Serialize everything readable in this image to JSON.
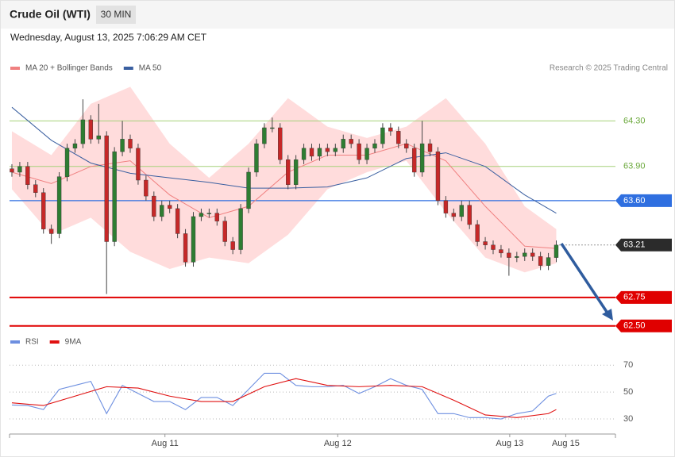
{
  "chart_data": [
    {
      "type": "candlestick",
      "title": "Crude Oil (WTI)",
      "timeframe": "30 MIN",
      "subtitle": "Wednesday, August 13, 2025 7:06:29 AM CET",
      "credit": "Research © 2025 Trading Central",
      "up_color": "#2e7d32",
      "down_color": "#c62828",
      "open": [
        63.88,
        63.85,
        63.9,
        63.74,
        63.67,
        63.35,
        63.31,
        63.81,
        64.06,
        64.1,
        64.31,
        64.14,
        64.17,
        63.24,
        64.03,
        64.14,
        64.06,
        63.78,
        63.64,
        63.46,
        63.56,
        63.53,
        63.31,
        63.06,
        63.46,
        63.49,
        63.49,
        63.42,
        63.24,
        63.17,
        63.53,
        63.85,
        64.1,
        64.24,
        64.24,
        63.96,
        63.74,
        63.96,
        64.06,
        63.99,
        64.06,
        64.03,
        64.06,
        64.14,
        64.1,
        63.96,
        64.06,
        64.1,
        64.24,
        64.21,
        64.1,
        64.06,
        63.85,
        64.1,
        64.03,
        63.6,
        63.49,
        63.46,
        63.56,
        63.39,
        63.24,
        63.21,
        63.17,
        63.14,
        63.1,
        63.11,
        63.14,
        63.11,
        63.03,
        63.1
      ],
      "high": [
        63.92,
        63.94,
        63.94,
        63.78,
        63.71,
        63.39,
        63.85,
        64.1,
        64.14,
        64.49,
        64.35,
        64.45,
        64.21,
        64.07,
        64.3,
        64.18,
        64.1,
        63.82,
        63.68,
        63.6,
        63.6,
        63.57,
        63.35,
        63.5,
        63.53,
        63.53,
        63.53,
        63.46,
        63.28,
        63.57,
        63.89,
        64.14,
        64.28,
        64.33,
        64.28,
        64.0,
        64.0,
        64.1,
        64.1,
        64.1,
        64.1,
        64.1,
        64.18,
        64.18,
        64.14,
        64.1,
        64.14,
        64.28,
        64.28,
        64.25,
        64.14,
        64.1,
        64.3,
        64.14,
        64.07,
        63.64,
        63.53,
        63.6,
        63.6,
        63.43,
        63.28,
        63.25,
        63.21,
        63.18,
        63.15,
        63.18,
        63.18,
        63.15,
        63.14,
        63.25
      ],
      "low": [
        63.81,
        63.81,
        63.7,
        63.63,
        63.31,
        63.22,
        63.27,
        63.77,
        64.02,
        64.06,
        64.1,
        64.1,
        62.78,
        63.2,
        63.99,
        64.02,
        63.74,
        63.6,
        63.42,
        63.42,
        63.49,
        63.27,
        63.02,
        63.02,
        63.42,
        63.45,
        63.38,
        63.2,
        63.13,
        63.13,
        63.49,
        63.81,
        64.06,
        64.2,
        63.92,
        63.7,
        63.7,
        63.92,
        63.95,
        63.95,
        63.99,
        63.99,
        64.02,
        64.06,
        63.92,
        63.92,
        64.02,
        64.06,
        64.17,
        64.06,
        64.02,
        63.81,
        63.81,
        63.99,
        63.56,
        63.45,
        63.42,
        63.42,
        63.35,
        63.2,
        63.17,
        63.13,
        63.1,
        62.94,
        63.06,
        63.07,
        63.07,
        62.99,
        62.99,
        63.06
      ],
      "close": [
        63.85,
        63.9,
        63.74,
        63.67,
        63.35,
        63.31,
        63.81,
        64.06,
        64.1,
        64.31,
        64.14,
        64.17,
        63.24,
        64.03,
        64.14,
        64.06,
        63.78,
        63.64,
        63.46,
        63.56,
        63.53,
        63.31,
        63.06,
        63.46,
        63.49,
        63.49,
        63.42,
        63.24,
        63.17,
        63.53,
        63.85,
        64.1,
        64.24,
        64.24,
        63.96,
        63.74,
        63.96,
        64.06,
        63.99,
        64.06,
        64.03,
        64.06,
        64.14,
        64.1,
        63.96,
        64.06,
        64.1,
        64.24,
        64.21,
        64.1,
        64.06,
        63.85,
        64.1,
        64.03,
        63.6,
        63.49,
        63.46,
        63.56,
        63.39,
        63.24,
        63.21,
        63.17,
        63.14,
        63.1,
        63.11,
        63.14,
        63.11,
        63.03,
        63.1,
        63.21
      ],
      "overlays": [
        {
          "name": "MA 20 + Bollinger Bands",
          "color": "#f08080",
          "band_color": "#ffdcdc",
          "x": [
            0,
            5,
            10,
            15,
            20,
            25,
            30,
            35,
            40,
            45,
            50,
            55,
            60,
            65,
            69
          ],
          "values": [
            63.85,
            63.75,
            63.9,
            63.95,
            63.65,
            63.45,
            63.55,
            63.85,
            64.0,
            64.0,
            64.1,
            63.95,
            63.55,
            63.2,
            63.18
          ],
          "upper": [
            64.21,
            64.0,
            64.45,
            64.6,
            64.1,
            63.8,
            64.1,
            64.5,
            64.25,
            64.15,
            64.25,
            64.5,
            64.1,
            63.55,
            63.35
          ],
          "lower": [
            63.7,
            63.3,
            63.45,
            63.15,
            63.0,
            63.1,
            63.05,
            63.3,
            63.7,
            63.85,
            63.95,
            63.5,
            63.1,
            62.97,
            63.05
          ]
        },
        {
          "name": "MA 50",
          "color": "#3a5fa0",
          "x": [
            0,
            5,
            10,
            15,
            20,
            25,
            30,
            35,
            40,
            45,
            50,
            55,
            60,
            65,
            69
          ],
          "values": [
            64.42,
            64.13,
            63.93,
            63.84,
            63.8,
            63.76,
            63.71,
            63.71,
            63.72,
            63.8,
            63.97,
            64.02,
            63.9,
            63.65,
            63.49
          ]
        }
      ],
      "levels": [
        {
          "value": 64.3,
          "label": "64.30",
          "color": "#a5d17a",
          "style": "solid",
          "box": false
        },
        {
          "value": 63.9,
          "label": "63.90",
          "color": "#a5d17a",
          "style": "solid",
          "box": false
        },
        {
          "value": 63.6,
          "label": "63.60",
          "color": "#2f6fe0",
          "style": "solid",
          "box": true
        },
        {
          "value": 63.21,
          "color": "#2b2b2b",
          "style": "dotted",
          "box": true
        },
        {
          "value": 62.75,
          "color": "#e00000",
          "style": "solid",
          "box": true
        },
        {
          "value": 62.5,
          "label": "62.50",
          "color": "#e00000",
          "style": "solid",
          "box": true
        }
      ],
      "xlim": [
        -0.3,
        76.5
      ],
      "ylim": [
        62.47,
        64.7
      ]
    },
    {
      "type": "line",
      "series": [
        {
          "name": "RSI",
          "color": "#6d8fe0",
          "x": [
            0,
            2,
            4,
            6,
            8,
            10,
            12,
            14,
            16,
            18,
            20,
            22,
            24,
            26,
            28,
            30,
            32,
            34,
            36,
            38,
            40,
            42,
            44,
            46,
            48,
            50,
            52,
            54,
            56,
            58,
            60,
            62,
            64,
            66,
            68,
            69
          ],
          "values": [
            40.4,
            40,
            37,
            52,
            55,
            58,
            34,
            55,
            49,
            43,
            43,
            37,
            46,
            46,
            40,
            52,
            64,
            64,
            55,
            54,
            54,
            55,
            49,
            54,
            60,
            55,
            52,
            34,
            34,
            31,
            31,
            30,
            34,
            36,
            47,
            49
          ]
        },
        {
          "name": "9MA",
          "color": "#e01010",
          "x": [
            0,
            4,
            8,
            12,
            16,
            20,
            24,
            28,
            32,
            36,
            40,
            44,
            48,
            52,
            56,
            60,
            64,
            68,
            69
          ],
          "values": [
            42,
            40,
            47,
            54,
            53,
            47,
            43,
            43,
            54,
            60,
            55,
            54,
            55,
            54,
            44,
            33,
            31,
            34,
            37
          ]
        }
      ],
      "xlim": [
        -0.3,
        76.5
      ],
      "ylim": [
        20,
        79
      ],
      "yticks": [
        30,
        50,
        70
      ],
      "xticks": [
        {
          "value": 19.4,
          "label": "Aug 11"
        },
        {
          "value": 41.3,
          "label": "Aug 12"
        },
        {
          "value": 63.1,
          "label": "Aug 13"
        },
        {
          "value": 70.2,
          "label": "Aug 15"
        }
      ]
    }
  ]
}
